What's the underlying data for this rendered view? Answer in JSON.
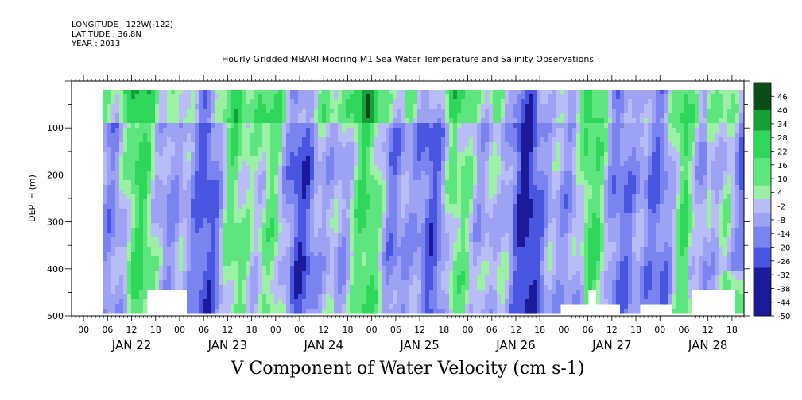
{
  "header": {
    "longitude": "LONGITUDE : 122W(-122)",
    "latitude": "LATITUDE : 36.8N",
    "year": "YEAR : 2013"
  },
  "chart_data": {
    "type": "heatmap",
    "title": "Hourly Gridded MBARI Mooring M1 Sea Water Temperature and Salinity Observations",
    "xlabel": "",
    "bottom_label": "V Component of Water Velocity (cm s-1)",
    "ylabel": "DEPTH (m)",
    "ylim": [
      500,
      0
    ],
    "y_ticks": [
      100,
      200,
      300,
      400,
      500
    ],
    "x_hours": [
      "00",
      "06",
      "12",
      "18",
      "00",
      "06",
      "12",
      "18",
      "00",
      "06",
      "12",
      "18",
      "00",
      "06",
      "12",
      "18",
      "00",
      "06",
      "12",
      "18",
      "00",
      "06",
      "12",
      "18",
      "00",
      "06",
      "12",
      "18"
    ],
    "x_days": [
      "JAN 22",
      "JAN 23",
      "JAN 24",
      "JAN 25",
      "JAN 26",
      "JAN 27",
      "JAN 28"
    ],
    "colorbar_levels": [
      "46",
      "40",
      "34",
      "28",
      "22",
      "16",
      "10",
      "4",
      "-2",
      "-8",
      "-14",
      "-20",
      "-26",
      "-32",
      "-38",
      "-44",
      "-50"
    ],
    "colorbar_range": [
      -50,
      52
    ],
    "colorbar_step": 3,
    "colors": {
      "strong_positive": "#0a3d0a",
      "positive": "#3ddc6a",
      "weak_positive": "#9ef0a8",
      "weak_negative": "#b8b8f4",
      "negative": "#8a8ef0",
      "strong_negative": "#0a0a6a"
    }
  }
}
